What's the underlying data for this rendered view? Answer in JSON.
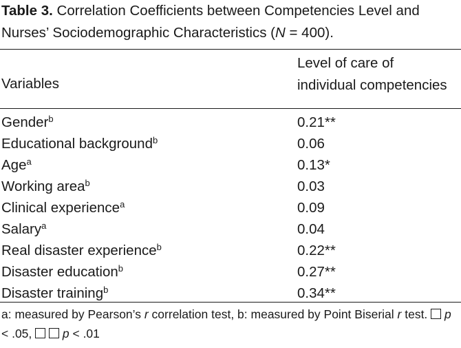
{
  "caption": {
    "label": "Table 3.",
    "text_a": "Correlation Coefficients between Competencies Level and Nurses’ Sociodemographic Characteristics (",
    "n_symbol": "N",
    "text_b": " = 400)."
  },
  "table": {
    "header_variables": "Variables",
    "header_col_line1": "Level of care of",
    "header_col_line2": "individual competencies",
    "rows": [
      {
        "variable": "Gender",
        "sup": "b",
        "value": "0.21",
        "sig": "**"
      },
      {
        "variable": "Educational background",
        "sup": "b",
        "value": "0.06",
        "sig": ""
      },
      {
        "variable": "Age",
        "sup": "a",
        "value": "0.13",
        "sig": "*"
      },
      {
        "variable": "Working area",
        "sup": "b",
        "value": "0.03",
        "sig": ""
      },
      {
        "variable": "Clinical experience",
        "sup": "a",
        "value": "0.09",
        "sig": ""
      },
      {
        "variable": "Salary",
        "sup": "a",
        "value": "0.04",
        "sig": ""
      },
      {
        "variable": "Real disaster experience",
        "sup": "b",
        "value": "0.22",
        "sig": "**"
      },
      {
        "variable": "Disaster education",
        "sup": "b",
        "value": "0.27",
        "sig": "**"
      },
      {
        "variable": "Disaster training",
        "sup": "b",
        "value": "0.34",
        "sig": "**"
      }
    ]
  },
  "footnote": {
    "part1": "a: measured by Pearson’s ",
    "r1": "r",
    "part2": " correlation test, b: measured by Point Biserial ",
    "r2": "r",
    "part3": " test. ",
    "p1": "p",
    "part4": " < .05, ",
    "p2": "p",
    "part5": " < .01"
  }
}
